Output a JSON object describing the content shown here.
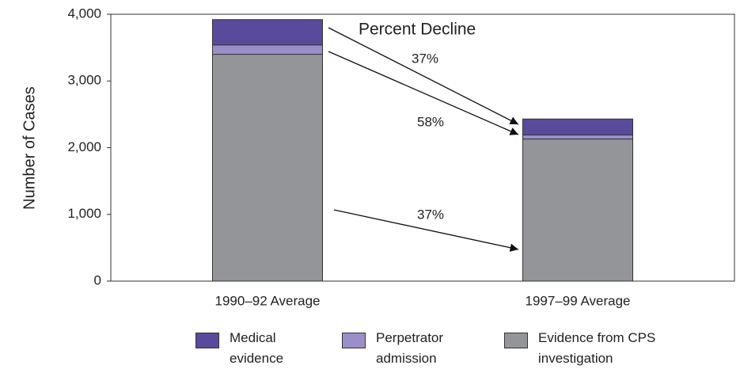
{
  "chart_data": {
    "type": "stacked-bar",
    "categories": [
      "1990–92 Average",
      "1997–99 Average"
    ],
    "series": [
      {
        "name": "Evidence from CPS investigation",
        "color": "#939598",
        "values": [
          3400,
          2130
        ]
      },
      {
        "name": "Perpetrator admission",
        "color": "#9a8fc9",
        "values": [
          140,
          60
        ]
      },
      {
        "name": "Medical evidence",
        "color": "#5a4a9c",
        "values": [
          380,
          240
        ]
      }
    ],
    "legend_order": [
      2,
      1,
      0
    ],
    "ylabel": "Number of Cases",
    "ylim": [
      0,
      4000
    ],
    "yticks": [
      0,
      {
        "value": 1000,
        "label": "1,000"
      },
      {
        "value": 2000,
        "label": "2,000"
      },
      {
        "value": 3000,
        "label": "3,000"
      },
      {
        "value": 4000,
        "label": "4,000"
      }
    ],
    "annotations": [
      "Percent Decline",
      "37%",
      "58%",
      "37%"
    ]
  }
}
